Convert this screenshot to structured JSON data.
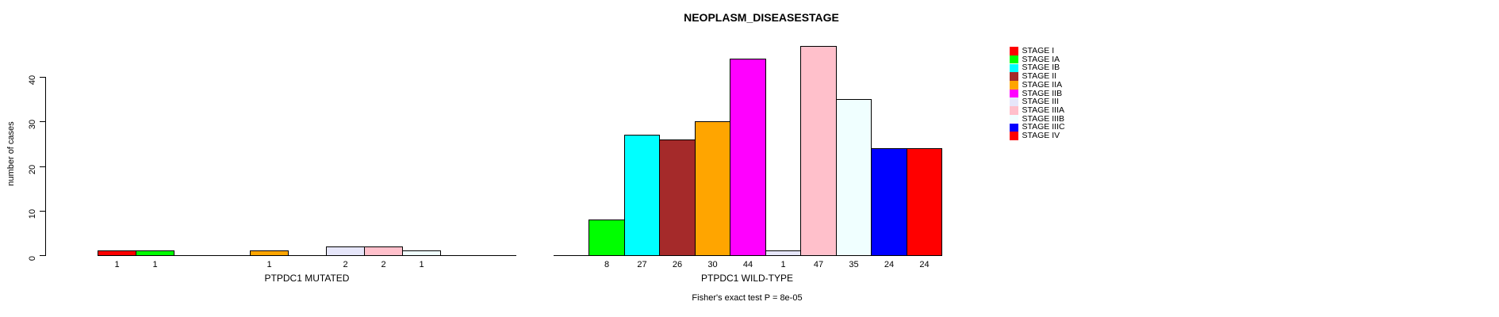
{
  "chart_data": {
    "type": "bar",
    "title": "NEOPLASM_DISEASESTAGE",
    "ylabel": "number of cases",
    "ylim": [
      0,
      40
    ],
    "yticks": [
      0,
      10,
      20,
      30,
      40
    ],
    "grid": false,
    "legend_position": "right",
    "categories": [
      "STAGE I",
      "STAGE IA",
      "STAGE IB",
      "STAGE II",
      "STAGE IIA",
      "STAGE IIB",
      "STAGE III",
      "STAGE IIIA",
      "STAGE IIIB",
      "STAGE IIIC",
      "STAGE IV"
    ],
    "colors": [
      "#FF0000",
      "#00FF00",
      "#00FFFF",
      "#A52A2A",
      "#FFA500",
      "#FF00FF",
      "#E6E6FA",
      "#FFC0CB",
      "#F0FFFF",
      "#0000FF",
      "#FF0000"
    ],
    "series": [
      {
        "name": "PTPDC1 MUTATED",
        "values": [
          1,
          1,
          0,
          0,
          1,
          0,
          2,
          2,
          1,
          0,
          0
        ]
      },
      {
        "name": "PTPDC1 WILD-TYPE",
        "values": [
          0,
          8,
          27,
          26,
          30,
          44,
          1,
          47,
          35,
          24,
          24
        ]
      }
    ],
    "bar_value_labels": {
      "PTPDC1 MUTATED": [
        "1",
        "1",
        "1",
        "2",
        "2",
        "1"
      ],
      "PTPDC1 WILD-TYPE": [
        "8",
        "27",
        "26",
        "30",
        "44",
        "1",
        "47",
        "35",
        "24",
        "24"
      ]
    },
    "footnote": "Fisher's exact test P = 8e-05"
  }
}
